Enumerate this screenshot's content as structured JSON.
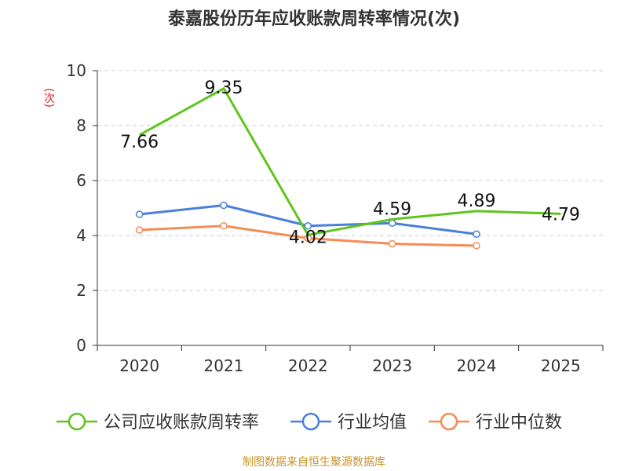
{
  "chart_data": {
    "type": "line",
    "title": "泰嘉股份历年应收账款周转率情况(次)",
    "ylabel": "(次)",
    "xlabel": "",
    "categories": [
      "2020",
      "2021",
      "2022",
      "2023",
      "2024",
      "2025"
    ],
    "ylim": [
      0,
      10
    ],
    "yticks": [
      0,
      2,
      4,
      6,
      8,
      10
    ],
    "grid": true,
    "legend_position": "bottom",
    "series": [
      {
        "name": "公司应收账款周转率",
        "values": [
          7.66,
          9.35,
          4.02,
          4.59,
          4.89,
          4.79
        ],
        "labels": [
          "7.66",
          "9.35",
          "4.02",
          "4.59",
          "4.89",
          "4.79"
        ],
        "color": "#5ec41e"
      },
      {
        "name": "行业均值",
        "values": [
          4.77,
          5.1,
          4.35,
          4.45,
          4.05,
          null
        ],
        "color": "#4a7fdc"
      },
      {
        "name": "行业中位数",
        "values": [
          4.2,
          4.35,
          3.9,
          3.7,
          3.63,
          null
        ],
        "color": "#f58b55"
      }
    ]
  },
  "footer": "制图数据来自恒生聚源数据库"
}
